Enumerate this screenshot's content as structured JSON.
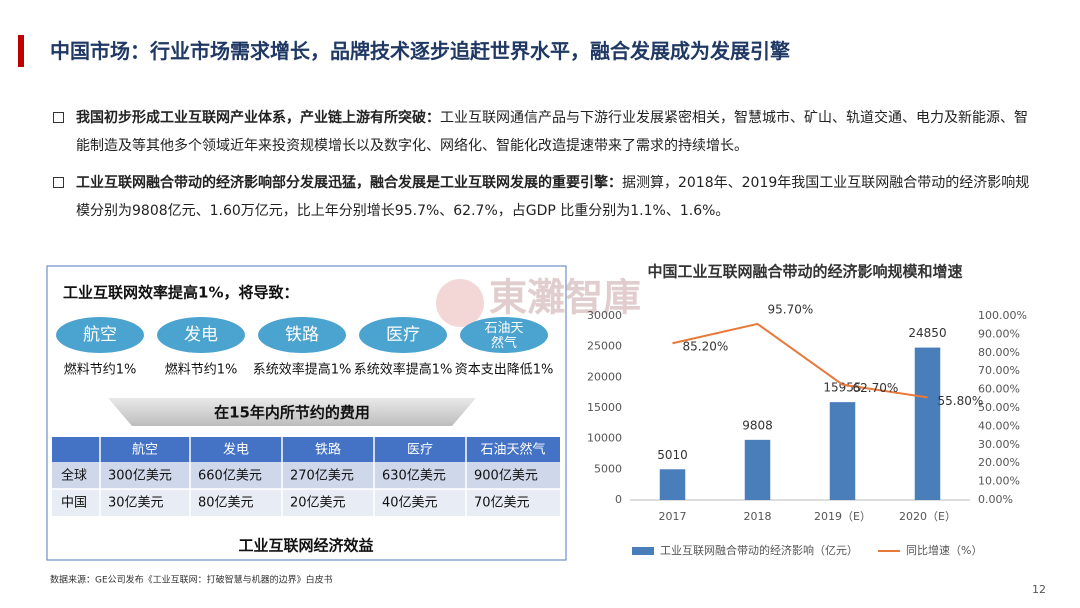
{
  "header": {
    "title": "中国市场：行业市场需求增长，品牌技术逐步追赶世界水平，融合发展成为发展引擎"
  },
  "bullets": [
    {
      "bold": "我国初步形成工业互联网产业体系，产业链上游有所突破：",
      "text": "工业互联网通信产品与下游行业发展紧密相关，智慧城市、矿山、轨道交通、电力及新能源、智能制造及等其他多个领域近年来投资规模增长以及数字化、网络化、智能化改造提速带来了需求的持续增长。"
    },
    {
      "bold": "工业互联网融合带动的经济影响部分发展迅猛，融合发展是工业互联网发展的重要引擎：",
      "text": "据测算，2018年、2019年我国工业互联网融合带动的经济影响规模分别为9808亿元、1.60万亿元，比上年分别增长95.7%、62.7%，占GDP 比重分别为1.1%、1.6%。"
    }
  ],
  "panel": {
    "title": "工业互联网效率提高1%，将导致：",
    "sectors": [
      {
        "name": "航空",
        "effect": "燃料节约1%"
      },
      {
        "name": "发电",
        "effect": "燃料节约1%"
      },
      {
        "name": "铁路",
        "effect": "系统效率提高1%"
      },
      {
        "name": "医疗",
        "effect": "系统效率提高1%"
      },
      {
        "name": "石油天然气",
        "effect": "资本支出降低1%"
      }
    ],
    "banner": "在15年内所节约的费用",
    "table": {
      "columns": [
        "航空",
        "发电",
        "铁路",
        "医疗",
        "石油天然气"
      ],
      "rows": [
        {
          "label": "全球",
          "cells": [
            "300亿美元",
            "660亿美元",
            "270亿美元",
            "630亿美元",
            "900亿美元"
          ]
        },
        {
          "label": "中国",
          "cells": [
            "30亿美元",
            "80亿美元",
            "20亿美元",
            "40亿美元",
            "70亿美元"
          ]
        }
      ]
    },
    "caption": "工业互联网经济效益"
  },
  "watermark": "東灘智庫",
  "source": "数据来源：GE公司发布《工业互联网：打破智慧与机器的边界》白皮书",
  "page_number": "12",
  "chart_data": {
    "type": "bar",
    "title": "中国工业互联网融合带动的经济影响规模和增速",
    "categories": [
      "2017",
      "2018",
      "2019（E）",
      "2020（E）"
    ],
    "series": [
      {
        "name": "工业互联网融合带动的经济影响（亿元）",
        "type": "bar",
        "color": "#4a7ebb",
        "values": [
          5010,
          9808,
          15955,
          24850
        ]
      },
      {
        "name": "同比增速（%）",
        "type": "line",
        "axis": "y2",
        "color": "#e8793a",
        "values": [
          85.2,
          95.7,
          62.7,
          55.8
        ],
        "value_labels": [
          "85.20%",
          "95.70%",
          "62.70%",
          "55.80%"
        ]
      }
    ],
    "ylim": [
      0,
      30000
    ],
    "yticks": [
      0,
      5000,
      10000,
      15000,
      20000,
      25000,
      30000
    ],
    "y2lim": [
      0,
      100
    ],
    "y2ticks": [
      {
        "value": 0,
        "label": "0.00%"
      },
      {
        "value": 10,
        "label": "10.00%"
      },
      {
        "value": 20,
        "label": "20.00%"
      },
      {
        "value": 30,
        "label": "30.00%"
      },
      {
        "value": 40,
        "label": "40.00%"
      },
      {
        "value": 50,
        "label": "50.00%"
      },
      {
        "value": 60,
        "label": "60.00%"
      },
      {
        "value": 70,
        "label": "70.00%"
      },
      {
        "value": 80,
        "label": "80.00%"
      },
      {
        "value": 90,
        "label": "90.00%"
      },
      {
        "value": 100,
        "label": "100.00%"
      }
    ],
    "legend": "bottom"
  }
}
